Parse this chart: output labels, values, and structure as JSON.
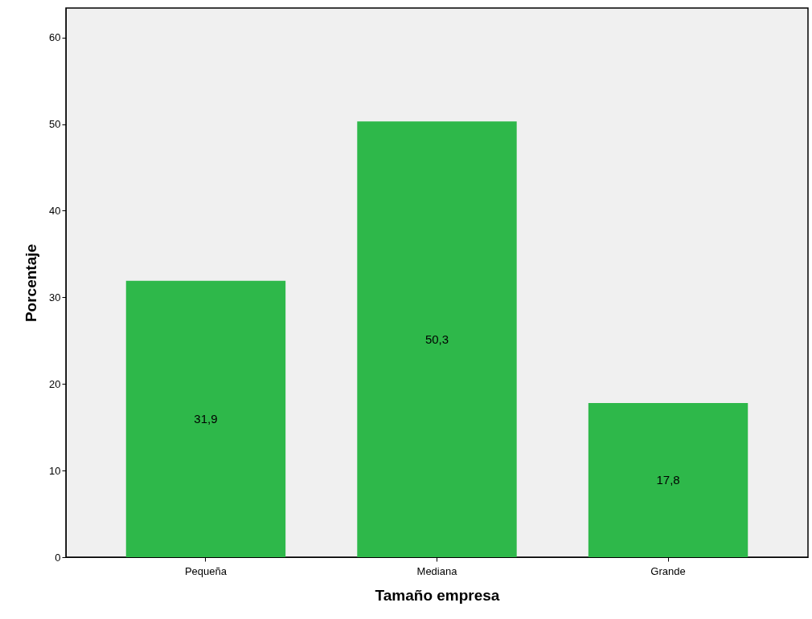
{
  "chart_data": {
    "type": "bar",
    "xlabel": "Tamaño empresa",
    "ylabel": "Porcentaje",
    "categories": [
      "Pequeña",
      "Mediana",
      "Grande"
    ],
    "values": [
      31.9,
      50.3,
      17.8
    ],
    "value_labels": [
      "31,9",
      "50,3",
      "17,8"
    ],
    "color": "#2eb84a",
    "ylim": [
      0,
      63.4
    ],
    "yticks": [
      0,
      10,
      20,
      30,
      40,
      50,
      60
    ],
    "grid": false
  }
}
